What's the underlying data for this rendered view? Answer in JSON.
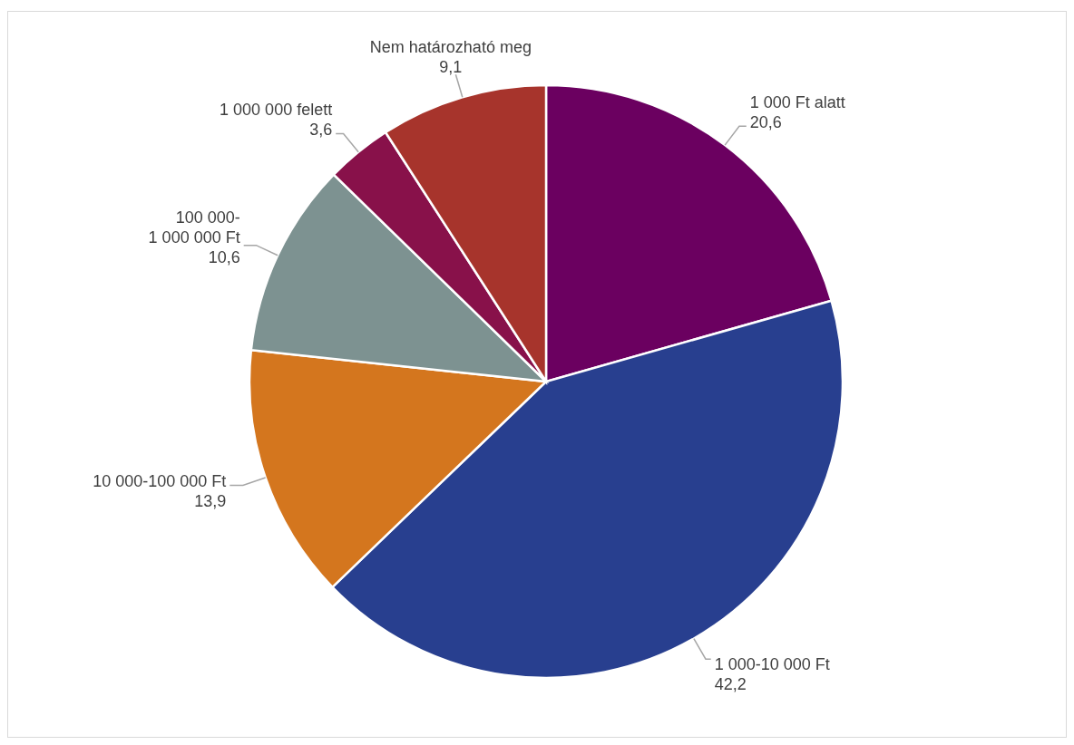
{
  "chart_data": {
    "type": "pie",
    "categories": [
      "1 000 Ft alatt",
      "1 000-10 000 Ft",
      "10 000-100 000 Ft",
      "100 000-1 000 000 Ft",
      "1 000 000 felett",
      "Nem határozható meg"
    ],
    "values": [
      20.6,
      42.2,
      13.9,
      10.6,
      3.6,
      9.1
    ],
    "colors": [
      "#6b0060",
      "#283f8f",
      "#d4761e",
      "#7d9291",
      "#88114a",
      "#a7342c"
    ],
    "value_labels": [
      "20,6",
      "42,2",
      "13,9",
      "10,6",
      "3,6",
      "9,1"
    ]
  }
}
